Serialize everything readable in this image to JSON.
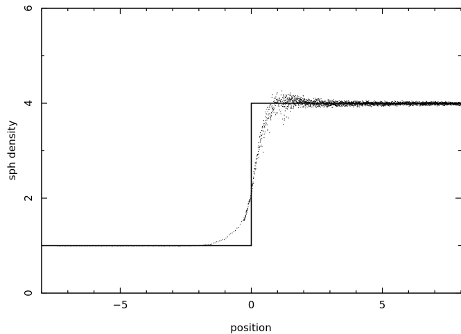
{
  "chart_data": {
    "type": "scatter",
    "title": "",
    "xlabel": "position",
    "ylabel": "sph density",
    "xlim": [
      -8,
      8
    ],
    "ylim": [
      0,
      6
    ],
    "x_ticks": [
      -5,
      0,
      5
    ],
    "x_tick_labels": [
      "−5",
      "0",
      "5"
    ],
    "y_ticks": [
      0,
      2,
      4,
      6
    ],
    "y_tick_labels": [
      "0",
      "2",
      "4",
      "6"
    ],
    "grid": false,
    "legend": "none",
    "series": [
      {
        "kind": "line",
        "description": "analytic step solution",
        "x": [
          -8,
          0,
          0,
          8
        ],
        "y": [
          1,
          1,
          4,
          4
        ],
        "color": "#000000"
      },
      {
        "kind": "scatter",
        "description": "particle densities",
        "profile": {
          "x": [
            -7.5,
            -2.5,
            -2.0,
            -1.5,
            -1.0,
            -0.5,
            -0.25,
            0.0,
            0.1,
            0.25,
            0.4,
            0.6,
            0.8,
            1.0,
            1.5,
            2.0,
            3.0,
            4.0,
            5.0,
            6.0,
            7.0,
            8.0
          ],
          "y": [
            1.0,
            1.0,
            1.01,
            1.05,
            1.15,
            1.4,
            1.6,
            2.1,
            2.6,
            3.0,
            3.4,
            3.75,
            3.95,
            4.05,
            4.05,
            4.02,
            4.0,
            4.0,
            4.0,
            4.0,
            4.0,
            4.0
          ]
        },
        "scatter_amplitude": {
          "x": [
            -7.5,
            -2.0,
            -0.5,
            0.0,
            0.5,
            1.0,
            2.0,
            3.0,
            5.0,
            8.0
          ],
          "y": [
            0.0,
            0.005,
            0.02,
            0.08,
            0.25,
            0.2,
            0.12,
            0.07,
            0.05,
            0.04
          ]
        },
        "color": "#000000"
      }
    ]
  }
}
